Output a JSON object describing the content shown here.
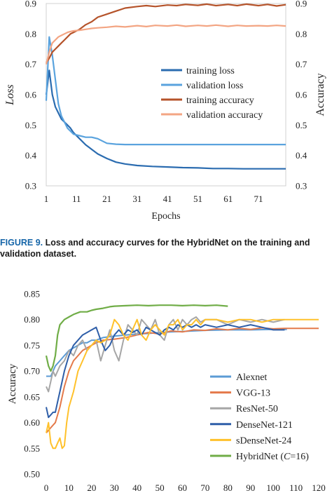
{
  "caption": {
    "figure_label": "FIGURE 9.",
    "line1": "Loss and accuracy curves for the HybridNet on the training and",
    "line2": "validation dataset."
  },
  "chart_data": [
    {
      "type": "line",
      "xlabel": "Epochs",
      "ylabel_left": "Loss",
      "ylabel_right": "Accuracy",
      "xlim": [
        1,
        80
      ],
      "ylim": [
        0.3,
        0.9
      ],
      "xticks": [
        1,
        11,
        21,
        31,
        41,
        51,
        61,
        71
      ],
      "yticks": [
        0.3,
        0.4,
        0.5,
        0.6,
        0.7,
        0.8,
        0.9
      ],
      "legend_position": "center-right",
      "series": [
        {
          "name": "training loss",
          "color": "#2b6cb0",
          "width": 2.2,
          "x": [
            1,
            2,
            3,
            4,
            5,
            6,
            7,
            8,
            9,
            10,
            12,
            14,
            16,
            18,
            21,
            24,
            27,
            31,
            36,
            41,
            46,
            51,
            56,
            61,
            66,
            71,
            76,
            80
          ],
          "y": [
            0.6,
            0.68,
            0.6,
            0.56,
            0.54,
            0.52,
            0.51,
            0.5,
            0.49,
            0.475,
            0.455,
            0.435,
            0.42,
            0.405,
            0.39,
            0.378,
            0.372,
            0.367,
            0.364,
            0.362,
            0.36,
            0.359,
            0.357,
            0.357,
            0.356,
            0.356,
            0.356,
            0.356
          ]
        },
        {
          "name": "validation loss",
          "color": "#5aa3de",
          "width": 2.2,
          "x": [
            1,
            2,
            3,
            4,
            5,
            6,
            7,
            8,
            9,
            10,
            12,
            14,
            16,
            18,
            21,
            24,
            27,
            31,
            41,
            51,
            61,
            71,
            80
          ],
          "y": [
            0.58,
            0.79,
            0.73,
            0.65,
            0.57,
            0.53,
            0.51,
            0.49,
            0.48,
            0.47,
            0.465,
            0.46,
            0.46,
            0.455,
            0.44,
            0.437,
            0.436,
            0.436,
            0.436,
            0.436,
            0.436,
            0.436,
            0.436
          ]
        },
        {
          "name": "training accuracy",
          "color": "#b5532a",
          "width": 2.2,
          "x": [
            1,
            2,
            3,
            4,
            5,
            6,
            7,
            8,
            9,
            10,
            12,
            14,
            16,
            18,
            21,
            24,
            27,
            31,
            34,
            37,
            41,
            44,
            47,
            51,
            54,
            57,
            61,
            64,
            67,
            71,
            74,
            77,
            80
          ],
          "y": [
            0.705,
            0.72,
            0.74,
            0.75,
            0.76,
            0.77,
            0.78,
            0.79,
            0.8,
            0.805,
            0.815,
            0.83,
            0.84,
            0.855,
            0.865,
            0.875,
            0.885,
            0.89,
            0.893,
            0.89,
            0.895,
            0.893,
            0.897,
            0.894,
            0.898,
            0.893,
            0.897,
            0.893,
            0.898,
            0.893,
            0.897,
            0.892,
            0.896
          ]
        },
        {
          "name": "validation accuracy",
          "color": "#f3a583",
          "width": 2.2,
          "x": [
            1,
            2,
            3,
            4,
            5,
            6,
            7,
            8,
            9,
            10,
            12,
            14,
            16,
            18,
            21,
            24,
            27,
            31,
            34,
            37,
            41,
            44,
            47,
            51,
            54,
            57,
            61,
            64,
            67,
            71,
            74,
            77,
            80
          ],
          "y": [
            0.7,
            0.74,
            0.77,
            0.78,
            0.79,
            0.795,
            0.8,
            0.805,
            0.808,
            0.81,
            0.812,
            0.815,
            0.818,
            0.82,
            0.822,
            0.825,
            0.823,
            0.827,
            0.824,
            0.828,
            0.826,
            0.829,
            0.825,
            0.828,
            0.826,
            0.829,
            0.825,
            0.828,
            0.826,
            0.827,
            0.826,
            0.828,
            0.826
          ]
        }
      ]
    },
    {
      "type": "line",
      "xlabel": "",
      "ylabel": "Accuracy",
      "xlim": [
        0,
        120
      ],
      "ylim": [
        0.5,
        0.85
      ],
      "xticks": [
        0,
        10,
        20,
        30,
        40,
        50,
        60,
        70,
        80,
        90,
        100,
        110,
        120
      ],
      "yticks": [
        0.5,
        0.55,
        0.6,
        0.65,
        0.7,
        0.75,
        0.8,
        0.85
      ],
      "legend_position": "bottom-right",
      "series": [
        {
          "name": "Alexnet",
          "color": "#5b9bd5",
          "width": 2,
          "x": [
            0,
            2,
            4,
            6,
            8,
            10,
            12,
            14,
            16,
            18,
            20,
            22,
            25,
            30,
            35,
            40,
            45,
            50,
            55,
            60,
            65,
            70,
            80,
            90,
            100,
            106
          ],
          "y": [
            0.69,
            0.69,
            0.71,
            0.72,
            0.73,
            0.74,
            0.745,
            0.75,
            0.755,
            0.755,
            0.76,
            0.76,
            0.765,
            0.768,
            0.77,
            0.772,
            0.773,
            0.775,
            0.776,
            0.777,
            0.778,
            0.779,
            0.78,
            0.78,
            0.781,
            0.781
          ]
        },
        {
          "name": "VGG-13",
          "color": "#e4794a",
          "width": 2,
          "x": [
            0,
            2,
            4,
            6,
            8,
            10,
            12,
            14,
            16,
            18,
            20,
            22,
            25,
            30,
            35,
            40,
            45,
            50,
            55,
            60,
            65,
            70,
            75,
            80,
            85,
            90,
            95,
            100,
            105,
            110,
            115,
            120
          ],
          "y": [
            0.58,
            0.59,
            0.6,
            0.63,
            0.67,
            0.7,
            0.72,
            0.73,
            0.74,
            0.745,
            0.75,
            0.755,
            0.76,
            0.762,
            0.765,
            0.77,
            0.775,
            0.772,
            0.778,
            0.776,
            0.78,
            0.779,
            0.782,
            0.78,
            0.783,
            0.781,
            0.784,
            0.782,
            0.783,
            0.783,
            0.783,
            0.783
          ]
        },
        {
          "name": "ResNet-50",
          "color": "#a6a6a6",
          "width": 2,
          "x": [
            0,
            1,
            2,
            3,
            4,
            6,
            8,
            10,
            12,
            14,
            16,
            18,
            20,
            22,
            24,
            26,
            28,
            30,
            32,
            34,
            36,
            38,
            40,
            42,
            44,
            46,
            48,
            50,
            52,
            54,
            56,
            58,
            60,
            62,
            64,
            66,
            68,
            70,
            75,
            80,
            85,
            90,
            95,
            100,
            105
          ],
          "y": [
            0.67,
            0.66,
            0.68,
            0.7,
            0.69,
            0.71,
            0.72,
            0.74,
            0.73,
            0.75,
            0.76,
            0.74,
            0.75,
            0.76,
            0.72,
            0.75,
            0.78,
            0.74,
            0.72,
            0.76,
            0.79,
            0.78,
            0.77,
            0.8,
            0.79,
            0.78,
            0.8,
            0.77,
            0.76,
            0.79,
            0.8,
            0.78,
            0.8,
            0.79,
            0.8,
            0.805,
            0.795,
            0.8,
            0.8,
            0.79,
            0.8,
            0.795,
            0.8,
            0.795,
            0.8
          ]
        },
        {
          "name": "DenseNet-121",
          "color": "#2e5ea8",
          "width": 2,
          "x": [
            0,
            1,
            2,
            3,
            4,
            5,
            6,
            8,
            10,
            12,
            14,
            16,
            18,
            20,
            22,
            24,
            26,
            28,
            30,
            32,
            34,
            36,
            38,
            40,
            42,
            44,
            46,
            48,
            50,
            52,
            54,
            56,
            58,
            60,
            62,
            64,
            66,
            68,
            70,
            75,
            80,
            85,
            90,
            95,
            100,
            105
          ],
          "y": [
            0.63,
            0.61,
            0.615,
            0.62,
            0.62,
            0.64,
            0.66,
            0.7,
            0.73,
            0.75,
            0.76,
            0.77,
            0.775,
            0.78,
            0.785,
            0.76,
            0.74,
            0.75,
            0.77,
            0.78,
            0.77,
            0.78,
            0.775,
            0.78,
            0.77,
            0.785,
            0.78,
            0.775,
            0.77,
            0.78,
            0.785,
            0.78,
            0.79,
            0.785,
            0.79,
            0.785,
            0.79,
            0.785,
            0.79,
            0.785,
            0.79,
            0.785,
            0.79,
            0.785,
            0.78,
            0.78
          ]
        },
        {
          "name": "sDenseNet-24",
          "color": "#ffc12b",
          "width": 2,
          "x": [
            0,
            1,
            2,
            3,
            4,
            5,
            6,
            7,
            8,
            9,
            10,
            12,
            14,
            16,
            18,
            20,
            22,
            24,
            26,
            28,
            30,
            32,
            34,
            36,
            38,
            40,
            42,
            44,
            46,
            48,
            50,
            52,
            54,
            56,
            58,
            60,
            62,
            64,
            66,
            68,
            70,
            75,
            80,
            85,
            90,
            95,
            100,
            105,
            110,
            115,
            120
          ],
          "y": [
            0.58,
            0.6,
            0.56,
            0.55,
            0.55,
            0.56,
            0.57,
            0.55,
            0.555,
            0.6,
            0.63,
            0.66,
            0.7,
            0.72,
            0.74,
            0.75,
            0.76,
            0.755,
            0.76,
            0.77,
            0.8,
            0.79,
            0.77,
            0.76,
            0.78,
            0.8,
            0.77,
            0.76,
            0.78,
            0.79,
            0.78,
            0.77,
            0.79,
            0.79,
            0.8,
            0.78,
            0.79,
            0.79,
            0.8,
            0.79,
            0.8,
            0.8,
            0.795,
            0.8,
            0.8,
            0.795,
            0.8,
            0.8,
            0.8,
            0.8,
            0.8
          ]
        },
        {
          "name": "HybridNet (C=16)",
          "name_parts": [
            "HybridNet (",
            "C",
            "=16)"
          ],
          "color": "#70ad47",
          "width": 2.2,
          "x": [
            0,
            1,
            2,
            3,
            4,
            5,
            6,
            8,
            10,
            12,
            15,
            18,
            20,
            22,
            25,
            28,
            30,
            35,
            40,
            45,
            50,
            55,
            60,
            65,
            70,
            75,
            80
          ],
          "y": [
            0.73,
            0.71,
            0.7,
            0.71,
            0.73,
            0.77,
            0.79,
            0.8,
            0.805,
            0.81,
            0.815,
            0.815,
            0.818,
            0.82,
            0.822,
            0.825,
            0.826,
            0.827,
            0.828,
            0.827,
            0.828,
            0.828,
            0.827,
            0.828,
            0.827,
            0.828,
            0.826
          ]
        }
      ]
    }
  ]
}
